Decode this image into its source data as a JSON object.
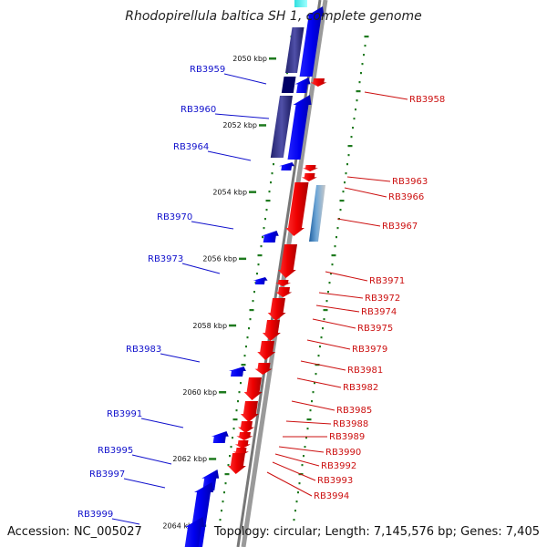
{
  "title": "Rhodopirellula baltica SH 1, complete genome",
  "accession": "Accession: NC_005027",
  "topology": "Topology: circular; Length: 7,145,576 bp; Genes: 7,405",
  "colors": {
    "forward": "#0000ee",
    "reverse": "#ee0000",
    "backbone": "#888888",
    "ticks": "#1e7a1e",
    "label_forward": "#1010cc",
    "label_reverse": "#cc1010"
  },
  "scale_marks": [
    {
      "label": "2050 kbp",
      "kbp": 2050
    },
    {
      "label": "2052 kbp",
      "kbp": 2052
    },
    {
      "label": "2054 kbp",
      "kbp": 2054
    },
    {
      "label": "2056 kbp",
      "kbp": 2056
    },
    {
      "label": "2058 kbp",
      "kbp": 2058
    },
    {
      "label": "2060 kbp",
      "kbp": 2060
    },
    {
      "label": "2062 kbp",
      "kbp": 2062
    },
    {
      "label": "2064 kbp",
      "kbp": 2064
    }
  ],
  "forward_genes": [
    "RB3959",
    "RB3960",
    "RB3964",
    "RB3970",
    "RB3973",
    "RB3983",
    "RB3991",
    "RB3995",
    "RB3997",
    "RB3999"
  ],
  "reverse_genes": [
    "RB3958",
    "RB3963",
    "RB3966",
    "RB3967",
    "RB3971",
    "RB3972",
    "RB3974",
    "RB3975",
    "RB3979",
    "RB3981",
    "RB3982",
    "RB3985",
    "RB3988",
    "RB3989",
    "RB3990",
    "RB3992",
    "RB3993",
    "RB3994"
  ]
}
